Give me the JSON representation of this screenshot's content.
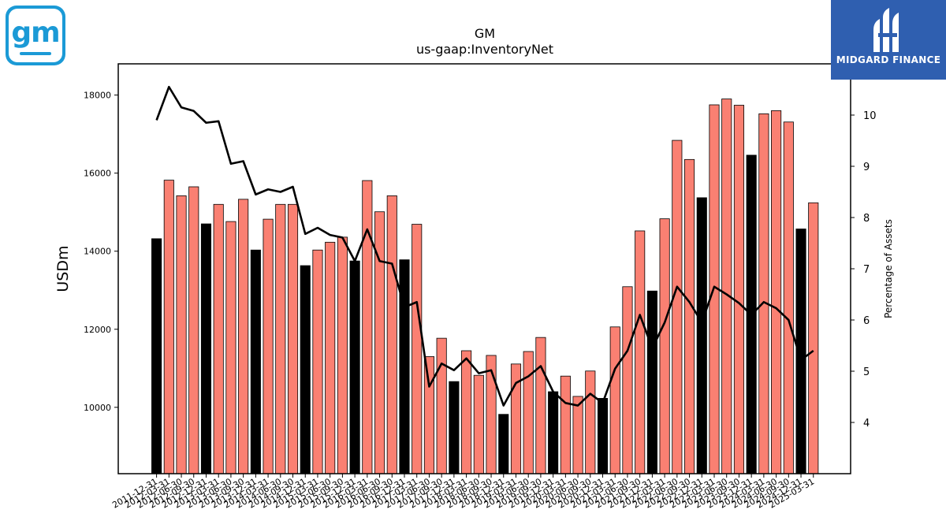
{
  "logos": {
    "left_brand": "gm",
    "right_brand": "MIDGARD FINANCE"
  },
  "colors": {
    "bar_default": "#fa8072",
    "bar_highlight": "#000000",
    "line": "#000000"
  },
  "chart_data": {
    "type": "bar",
    "title": "GM",
    "subtitle": "us-gaap:InventoryNet",
    "ylabel": "USDm",
    "y2label": "Percentage of Assets",
    "ylim": [
      8300,
      18800
    ],
    "y2lim": [
      3.0,
      11.0
    ],
    "yticks": [
      10000,
      12000,
      14000,
      16000,
      18000
    ],
    "y2ticks": [
      4,
      5,
      6,
      7,
      8,
      9,
      10
    ],
    "grid": false,
    "categories": [
      "2011-12-31",
      "2012-03-31",
      "2012-06-30",
      "2012-09-30",
      "2012-12-31",
      "2013-03-31",
      "2013-06-30",
      "2013-09-30",
      "2013-12-31",
      "2014-03-31",
      "2014-06-30",
      "2014-09-30",
      "2014-12-31",
      "2015-03-31",
      "2015-06-30",
      "2015-09-30",
      "2015-12-31",
      "2016-03-31",
      "2016-06-30",
      "2016-09-30",
      "2016-12-31",
      "2017-03-31",
      "2017-06-30",
      "2017-09-30",
      "2017-12-31",
      "2018-03-31",
      "2018-06-30",
      "2018-09-30",
      "2018-12-31",
      "2019-03-31",
      "2019-06-30",
      "2019-09-30",
      "2019-12-31",
      "2020-03-31",
      "2020-06-30",
      "2020-09-30",
      "2020-12-31",
      "2021-03-31",
      "2021-06-30",
      "2021-09-30",
      "2021-12-31",
      "2022-03-31",
      "2022-06-30",
      "2022-09-30",
      "2022-12-31",
      "2023-03-31",
      "2023-06-30",
      "2023-09-30",
      "2023-12-31",
      "2024-03-31",
      "2024-06-30",
      "2024-09-30",
      "2024-12-31",
      "2025-03-31"
    ],
    "series": [
      {
        "type": "bar",
        "axis": "left",
        "values": [
          14320,
          15820,
          15420,
          15650,
          14700,
          15200,
          14760,
          15330,
          14030,
          14820,
          15200,
          15200,
          13630,
          14030,
          14230,
          14360,
          13750,
          15810,
          15010,
          15420,
          13780,
          14690,
          11300,
          11770,
          10660,
          11450,
          10820,
          11330,
          9820,
          11110,
          11430,
          11790,
          10400,
          10800,
          10280,
          10930,
          10230,
          12060,
          13090,
          14520,
          12980,
          14830,
          16840,
          16350,
          15370,
          17750,
          17900,
          17740,
          16460,
          17520,
          17600,
          17310,
          14570,
          15240
        ],
        "highlight": [
          true,
          false,
          false,
          false,
          true,
          false,
          false,
          false,
          true,
          false,
          false,
          false,
          true,
          false,
          false,
          false,
          true,
          false,
          false,
          false,
          true,
          false,
          false,
          false,
          true,
          false,
          false,
          false,
          true,
          false,
          false,
          false,
          true,
          false,
          false,
          false,
          true,
          false,
          false,
          false,
          true,
          false,
          false,
          false,
          true,
          false,
          false,
          false,
          true,
          false,
          false,
          false,
          true,
          false
        ]
      },
      {
        "type": "line",
        "axis": "right",
        "values": [
          9.9,
          10.55,
          10.15,
          10.08,
          9.85,
          9.88,
          9.05,
          9.1,
          8.45,
          8.55,
          8.5,
          8.6,
          7.68,
          7.8,
          7.66,
          7.61,
          7.15,
          7.77,
          7.15,
          7.1,
          6.25,
          6.35,
          4.7,
          5.15,
          5.02,
          5.25,
          4.96,
          5.02,
          4.33,
          4.77,
          4.9,
          5.1,
          4.6,
          4.38,
          4.33,
          4.56,
          4.38,
          5.05,
          5.4,
          6.1,
          5.45,
          5.95,
          6.65,
          6.35,
          5.95,
          6.65,
          6.5,
          6.33,
          6.1,
          6.35,
          6.23,
          6.0,
          5.22,
          5.4
        ]
      }
    ]
  }
}
